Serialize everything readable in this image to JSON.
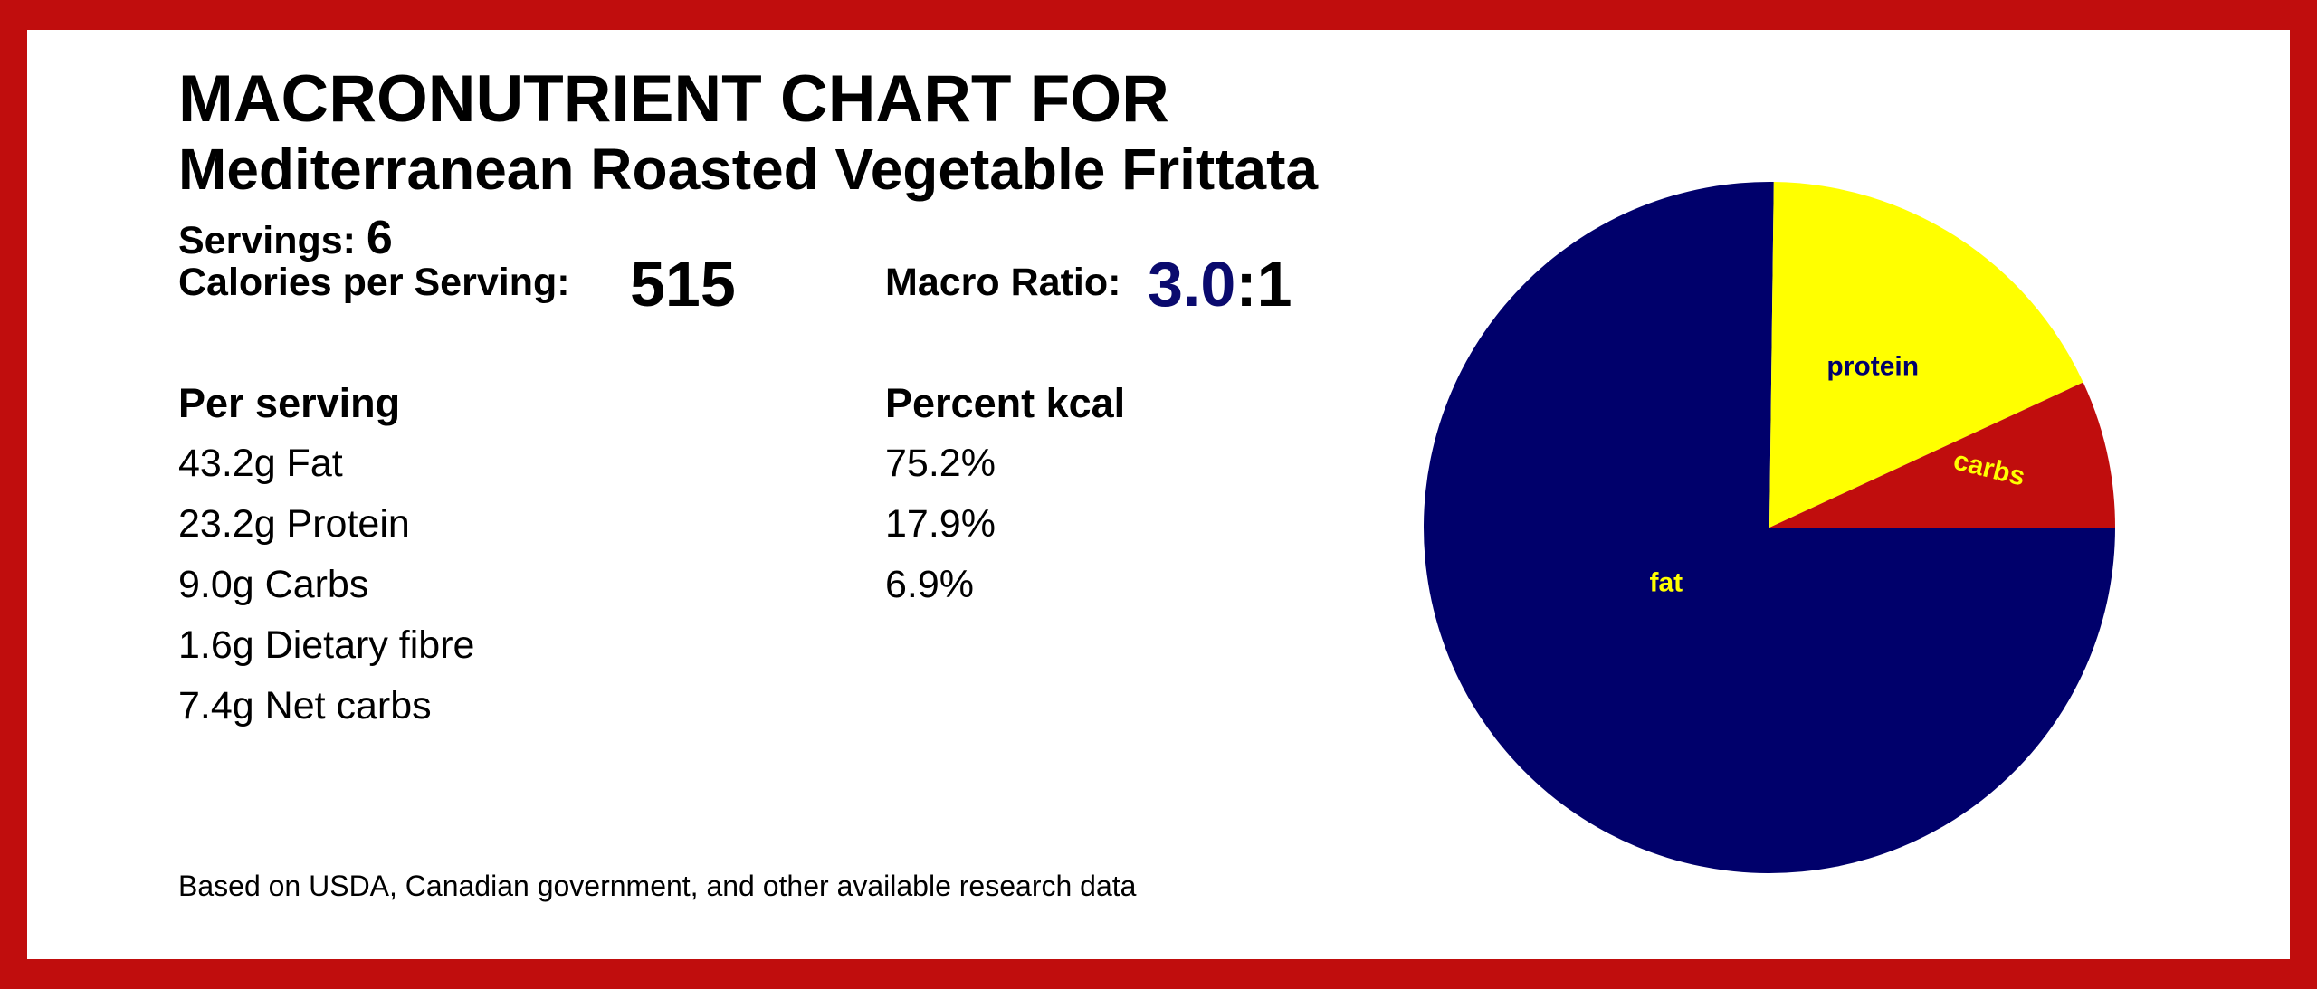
{
  "title_line1": "MACRONUTRIENT CHART FOR",
  "title_line2": "Mediterranean Roasted Vegetable Frittata",
  "servings": {
    "label": "Servings:",
    "value": "6"
  },
  "calories": {
    "label": "Calories per Serving:",
    "value": "515"
  },
  "macro_ratio": {
    "label": "Macro Ratio:",
    "numerator": "3.0",
    "suffix": ":1"
  },
  "per_serving": {
    "heading": "Per serving",
    "rows": [
      "43.2g Fat",
      "23.2g Protein",
      "9.0g Carbs",
      "1.6g Dietary fibre",
      "7.4g Net carbs"
    ]
  },
  "percent_kcal": {
    "heading": "Percent kcal",
    "rows": [
      "75.2%",
      "17.9%",
      "6.9%"
    ]
  },
  "footnote": "Based on USDA, Canadian government, and other available research data",
  "colors": {
    "frame": "#c00d0d",
    "fat": "#00006b",
    "protein": "#ffff00",
    "carbs": "#c00d0d",
    "ratio_accent": "#0a0a6e"
  },
  "chart_data": {
    "type": "pie",
    "categories": [
      "fat",
      "protein",
      "carbs"
    ],
    "values": [
      75.2,
      17.9,
      6.9
    ],
    "colors": [
      "#00006b",
      "#ffff00",
      "#c00d0d"
    ],
    "label_colors": [
      "#ffff00",
      "#00006b",
      "#ffff00"
    ],
    "start": "3 o'clock",
    "direction": "clockwise"
  }
}
